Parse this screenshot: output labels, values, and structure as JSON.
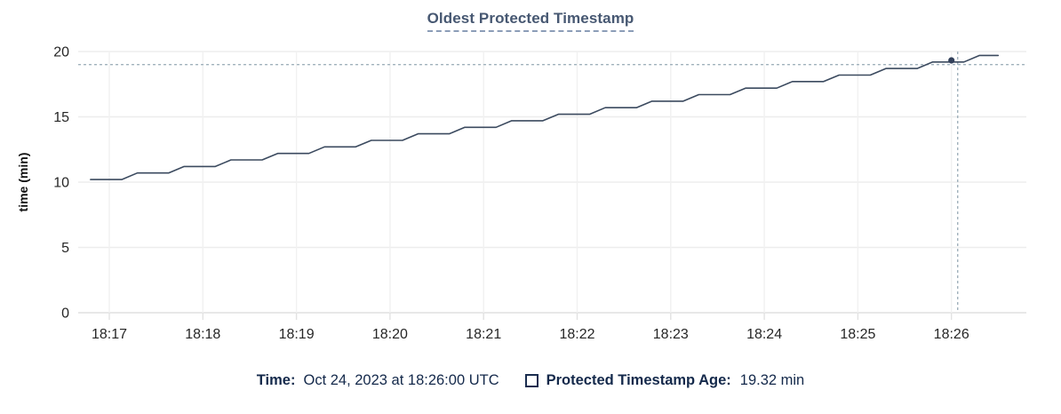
{
  "title": {
    "text": "Oldest Protected Timestamp"
  },
  "tooltip": {
    "time_label": "Time:",
    "time_value": "Oct 24, 2023 at 18:26:00 UTC",
    "series_label": "Protected Timestamp Age:",
    "series_value": "19.32 min",
    "swatch_shape": "hollow-square"
  },
  "colors": {
    "title_text": "#475872",
    "title_underline": "#8c9db8",
    "axis_text": "#262626",
    "y_axis_title_text": "#111111",
    "grid_horizontal": "#ededed",
    "grid_vertical": "#f1f1f1",
    "axis_baseline": "#e0e0e0",
    "tick_mark": "#e2e2e2",
    "series_line": "#3b4a5f",
    "hover_dot": "#32405a",
    "crosshair": "#a0b1bc",
    "legend_text": "#14294b"
  },
  "chart_data": {
    "type": "line",
    "title": "Oldest Protected Timestamp",
    "xlabel": "",
    "ylabel": "time (min)",
    "ylim": [
      0,
      20
    ],
    "y_ticks": [
      0,
      5,
      10,
      15,
      20
    ],
    "x_ticks": [
      "18:17",
      "18:18",
      "18:19",
      "18:20",
      "18:21",
      "18:22",
      "18:23",
      "18:24",
      "18:25",
      "18:26"
    ],
    "grid": true,
    "legend_position": "bottom",
    "series": [
      {
        "name": "Protected Timestamp Age",
        "unit": "min",
        "points": [
          [
            "18:16:48",
            10.2
          ],
          [
            "18:17:08",
            10.2
          ],
          [
            "18:17:18",
            10.7
          ],
          [
            "18:17:38",
            10.7
          ],
          [
            "18:17:48",
            11.2
          ],
          [
            "18:18:08",
            11.2
          ],
          [
            "18:18:18",
            11.7
          ],
          [
            "18:18:38",
            11.7
          ],
          [
            "18:18:48",
            12.2
          ],
          [
            "18:19:08",
            12.2
          ],
          [
            "18:19:18",
            12.7
          ],
          [
            "18:19:38",
            12.7
          ],
          [
            "18:19:48",
            13.2
          ],
          [
            "18:20:08",
            13.2
          ],
          [
            "18:20:18",
            13.7
          ],
          [
            "18:20:38",
            13.7
          ],
          [
            "18:20:48",
            14.2
          ],
          [
            "18:21:08",
            14.2
          ],
          [
            "18:21:18",
            14.7
          ],
          [
            "18:21:38",
            14.7
          ],
          [
            "18:21:48",
            15.2
          ],
          [
            "18:22:08",
            15.2
          ],
          [
            "18:22:18",
            15.7
          ],
          [
            "18:22:38",
            15.7
          ],
          [
            "18:22:48",
            16.2
          ],
          [
            "18:23:08",
            16.2
          ],
          [
            "18:23:18",
            16.7
          ],
          [
            "18:23:38",
            16.7
          ],
          [
            "18:23:48",
            17.2
          ],
          [
            "18:24:08",
            17.2
          ],
          [
            "18:24:18",
            17.7
          ],
          [
            "18:24:38",
            17.7
          ],
          [
            "18:24:48",
            18.2
          ],
          [
            "18:25:08",
            18.2
          ],
          [
            "18:25:18",
            18.7
          ],
          [
            "18:25:38",
            18.7
          ],
          [
            "18:25:48",
            19.2
          ],
          [
            "18:26:08",
            19.2
          ],
          [
            "18:26:18",
            19.7
          ],
          [
            "18:26:30",
            19.7
          ]
        ]
      }
    ],
    "hover": {
      "snapped_time": "18:26:00",
      "snapped_value": 19.32,
      "cursor_time": "18:26:04",
      "cursor_value": 19.0
    }
  }
}
